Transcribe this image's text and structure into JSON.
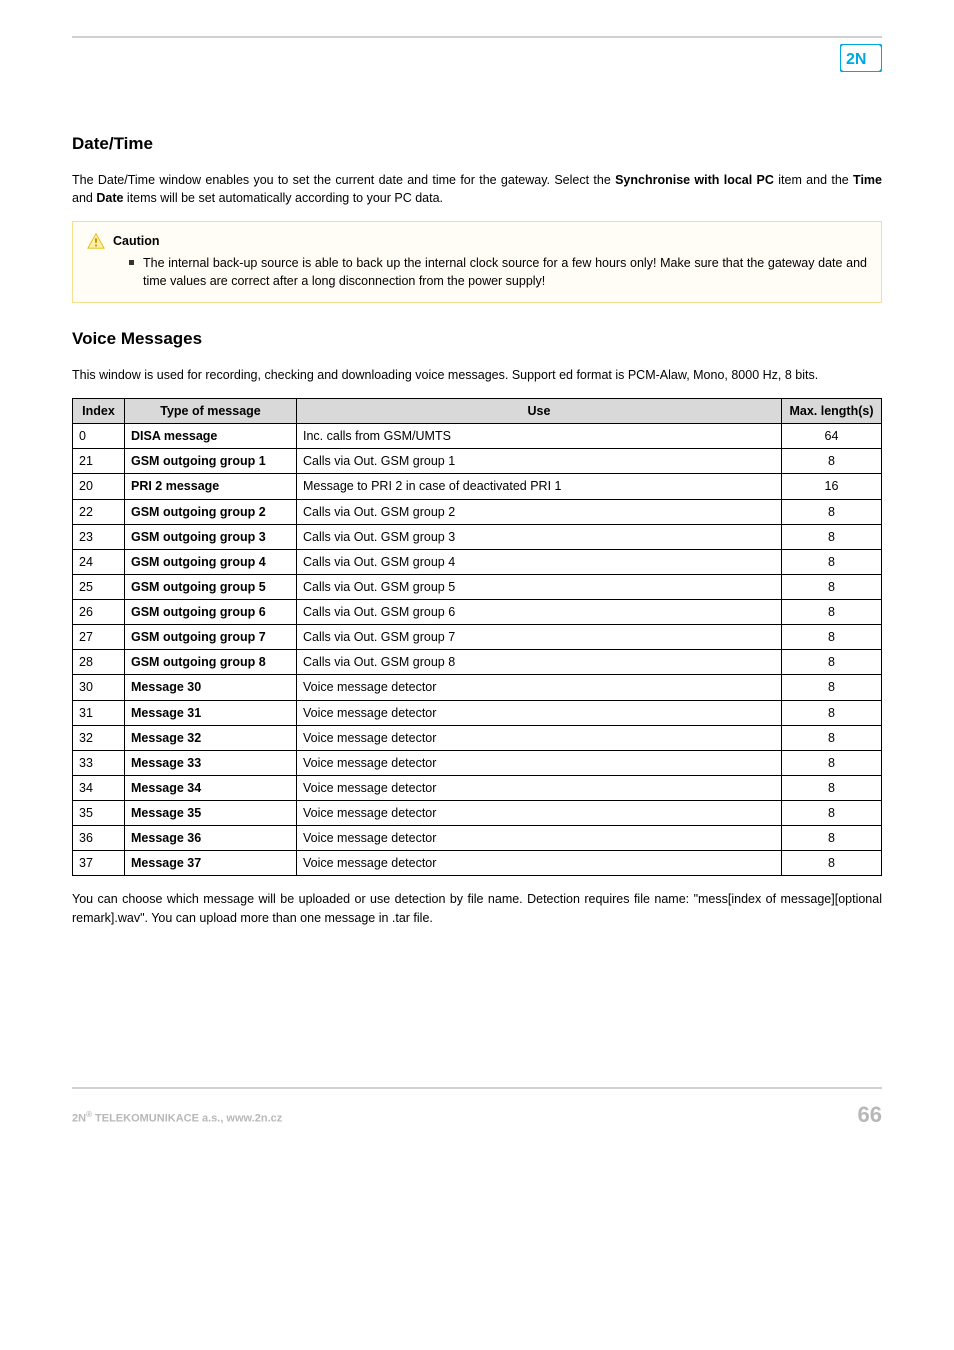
{
  "page": {
    "logo_color": "#00a7e0",
    "logo_bg": "#ffffff"
  },
  "section1": {
    "title": "Date/Time",
    "para": "The Date/Time window enables you to set the current date and time for the gateway. Select the ",
    "para_bold1": "Synchronise with local PC",
    "para_mid1": " item and the ",
    "para_bold2": "Time",
    "para_mid2": " and ",
    "para_bold3": "Date",
    "para_end": " items will be set automatically according to your PC data."
  },
  "caution": {
    "label": "Caution",
    "bullet": "The internal back-up source is able to back up the internal clock source for a few hours only! Make sure that the gateway date and time values are correct after a long disconnection from the power supply!"
  },
  "section2": {
    "title": "Voice Messages",
    "para": "This window is used for recording, checking and downloading voice messages. Support ed format is PCM-Alaw, Mono, 8000 Hz, 8 bits."
  },
  "table": {
    "headers": {
      "c1": "Index",
      "c2": "Type of message",
      "c3": "Use",
      "c4": "Max. length(s)"
    },
    "rows": [
      {
        "idx": "0",
        "type": "DISA message",
        "use": "Inc. calls from GSM/UMTS",
        "max": "64"
      },
      {
        "idx": "21",
        "type": "GSM outgoing group 1",
        "use": "Calls via Out. GSM group 1",
        "max": "8"
      },
      {
        "idx": "20",
        "type": "PRI 2 message",
        "use": "Message to PRI 2 in case of deactivated PRI 1",
        "max": "16"
      },
      {
        "idx": "22",
        "type": "GSM outgoing group 2",
        "use": "Calls via Out. GSM group 2",
        "max": "8"
      },
      {
        "idx": "23",
        "type": "GSM outgoing group 3",
        "use": "Calls via Out. GSM group 3",
        "max": "8"
      },
      {
        "idx": "24",
        "type": "GSM outgoing group 4",
        "use": "Calls via Out. GSM group 4",
        "max": "8"
      },
      {
        "idx": "25",
        "type": "GSM outgoing group 5",
        "use": "Calls via Out. GSM group 5",
        "max": "8"
      },
      {
        "idx": "26",
        "type": "GSM outgoing group 6",
        "use": "Calls via Out. GSM group 6",
        "max": "8"
      },
      {
        "idx": "27",
        "type": "GSM outgoing group 7",
        "use": "Calls via Out. GSM group 7",
        "max": "8"
      },
      {
        "idx": "28",
        "type": "GSM outgoing group 8",
        "use": "Calls via Out. GSM group 8",
        "max": "8"
      },
      {
        "idx": "30",
        "type": "Message 30",
        "use": "Voice message detector",
        "max": "8"
      },
      {
        "idx": "31",
        "type": "Message 31",
        "use": "Voice message detector",
        "max": "8"
      },
      {
        "idx": "32",
        "type": "Message 32",
        "use": "Voice message detector",
        "max": "8"
      },
      {
        "idx": "33",
        "type": "Message 33",
        "use": "Voice message detector",
        "max": "8"
      },
      {
        "idx": "34",
        "type": "Message 34",
        "use": "Voice message detector",
        "max": "8"
      },
      {
        "idx": "35",
        "type": "Message 35",
        "use": "Voice message detector",
        "max": "8"
      },
      {
        "idx": "36",
        "type": "Message 36",
        "use": "Voice message detector",
        "max": "8"
      },
      {
        "idx": "37",
        "type": "Message 37",
        "use": "Voice message detector",
        "max": "8"
      }
    ]
  },
  "closing": {
    "text": "You can choose which message will be uploaded or use detection by file name. Detection requires file name: \"mess[index of message][optional remark].wav\". You can upload more than one message in .tar file."
  },
  "footer": {
    "left_prefix": "2N",
    "left_sup": "®",
    "left_rest": " TELEKOMUNIKACE a.s., www.2n.cz",
    "page_no": "66"
  }
}
